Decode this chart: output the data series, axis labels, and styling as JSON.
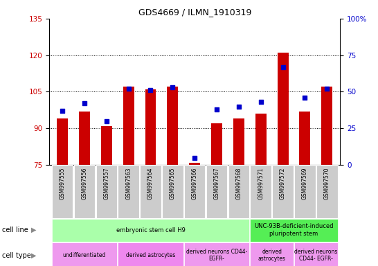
{
  "title": "GDS4669 / ILMN_1910319",
  "samples": [
    "GSM997555",
    "GSM997556",
    "GSM997557",
    "GSM997563",
    "GSM997564",
    "GSM997565",
    "GSM997566",
    "GSM997567",
    "GSM997568",
    "GSM997571",
    "GSM997572",
    "GSM997569",
    "GSM997570"
  ],
  "count_values": [
    94,
    97,
    91,
    107,
    106,
    107,
    76,
    92,
    94,
    96,
    121,
    97,
    107
  ],
  "percentile_values": [
    37,
    42,
    30,
    52,
    51,
    53,
    5,
    38,
    40,
    43,
    67,
    46,
    52
  ],
  "ylim_left": [
    75,
    135
  ],
  "ylim_right": [
    0,
    100
  ],
  "yticks_left": [
    75,
    90,
    105,
    120,
    135
  ],
  "yticks_right": [
    0,
    25,
    50,
    75,
    100
  ],
  "bar_color": "#cc0000",
  "dot_color": "#0000cc",
  "bar_bottom": 75,
  "cell_line_groups": [
    {
      "label": "embryonic stem cell H9",
      "start": 0,
      "end": 9,
      "color": "#aaffaa"
    },
    {
      "label": "UNC-93B-deficient-induced\npluripotent stem",
      "start": 9,
      "end": 13,
      "color": "#55ee55"
    }
  ],
  "cell_type_groups": [
    {
      "label": "undifferentiated",
      "start": 0,
      "end": 3,
      "color": "#ee99ee"
    },
    {
      "label": "derived astrocytes",
      "start": 3,
      "end": 6,
      "color": "#ee88ee"
    },
    {
      "label": "derived neurons CD44-\nEGFR-",
      "start": 6,
      "end": 9,
      "color": "#ee99ee"
    },
    {
      "label": "derived\nastrocytes",
      "start": 9,
      "end": 11,
      "color": "#ee99ee"
    },
    {
      "label": "derived neurons\nCD44- EGFR-",
      "start": 11,
      "end": 13,
      "color": "#ee99ee"
    }
  ],
  "legend_count_color": "#cc0000",
  "legend_pct_color": "#0000cc"
}
